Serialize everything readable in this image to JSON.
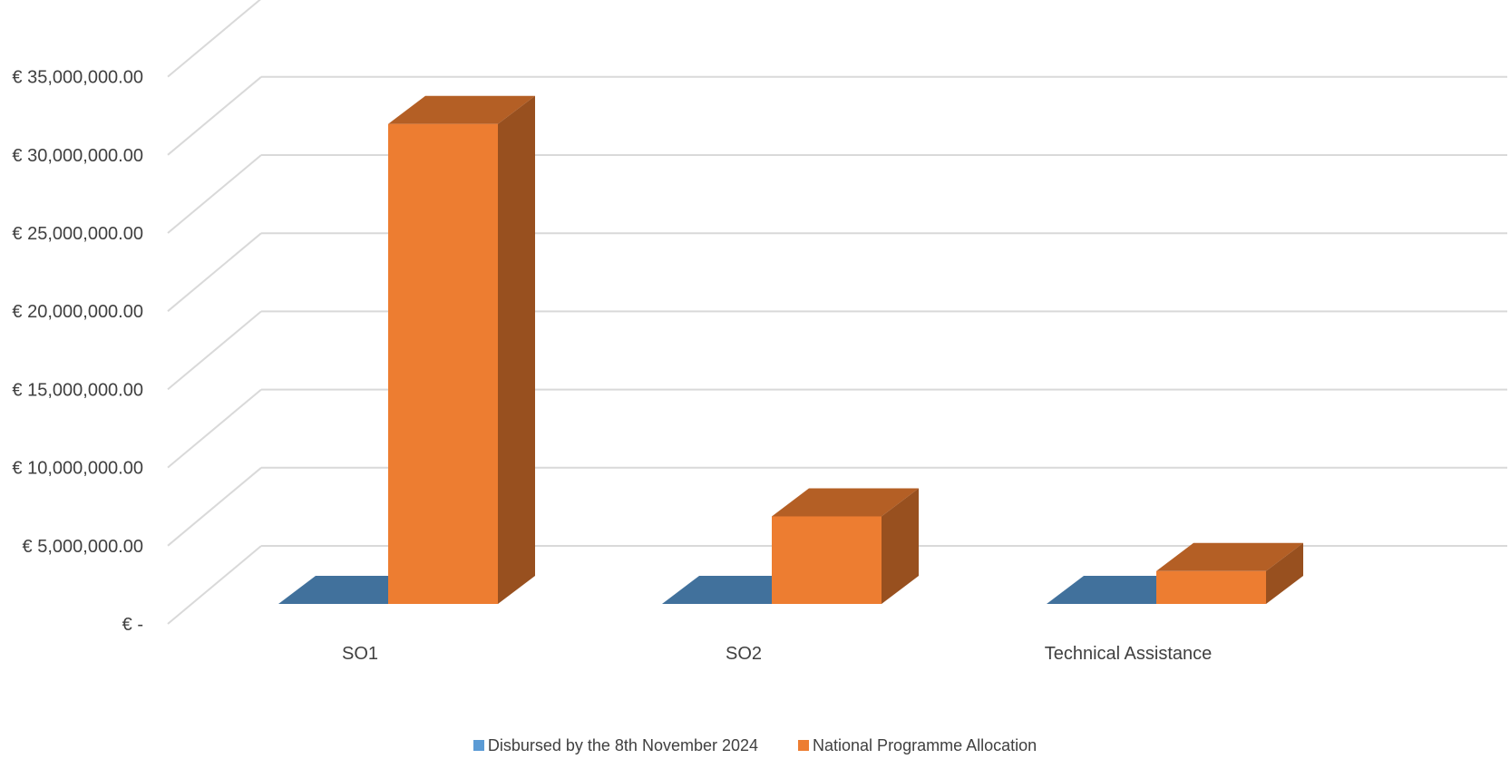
{
  "chart_data": {
    "type": "bar",
    "style": "3d-clustered-column",
    "categories": [
      "SO1",
      "SO2",
      "Technical Assistance"
    ],
    "series": [
      {
        "name": "Disbursed by the 8th November 2024",
        "values": [
          0,
          0,
          0
        ],
        "color": "#5B9BD5"
      },
      {
        "name": "National Programme Allocation",
        "values": [
          30700000,
          5600000,
          2100000
        ],
        "color": "#ED7D31"
      }
    ],
    "y_tick_labels": [
      "€ -",
      "€ 5,000,000.00",
      "€ 10,000,000.00",
      "€ 15,000,000.00",
      "€ 20,000,000.00",
      "€ 25,000,000.00",
      "€ 30,000,000.00",
      "€ 35,000,000.00"
    ],
    "ylim": [
      0,
      40000000
    ],
    "y_tick_step": 5000000,
    "grid": true,
    "legend_position": "bottom",
    "title": "",
    "xlabel": "",
    "ylabel": ""
  }
}
